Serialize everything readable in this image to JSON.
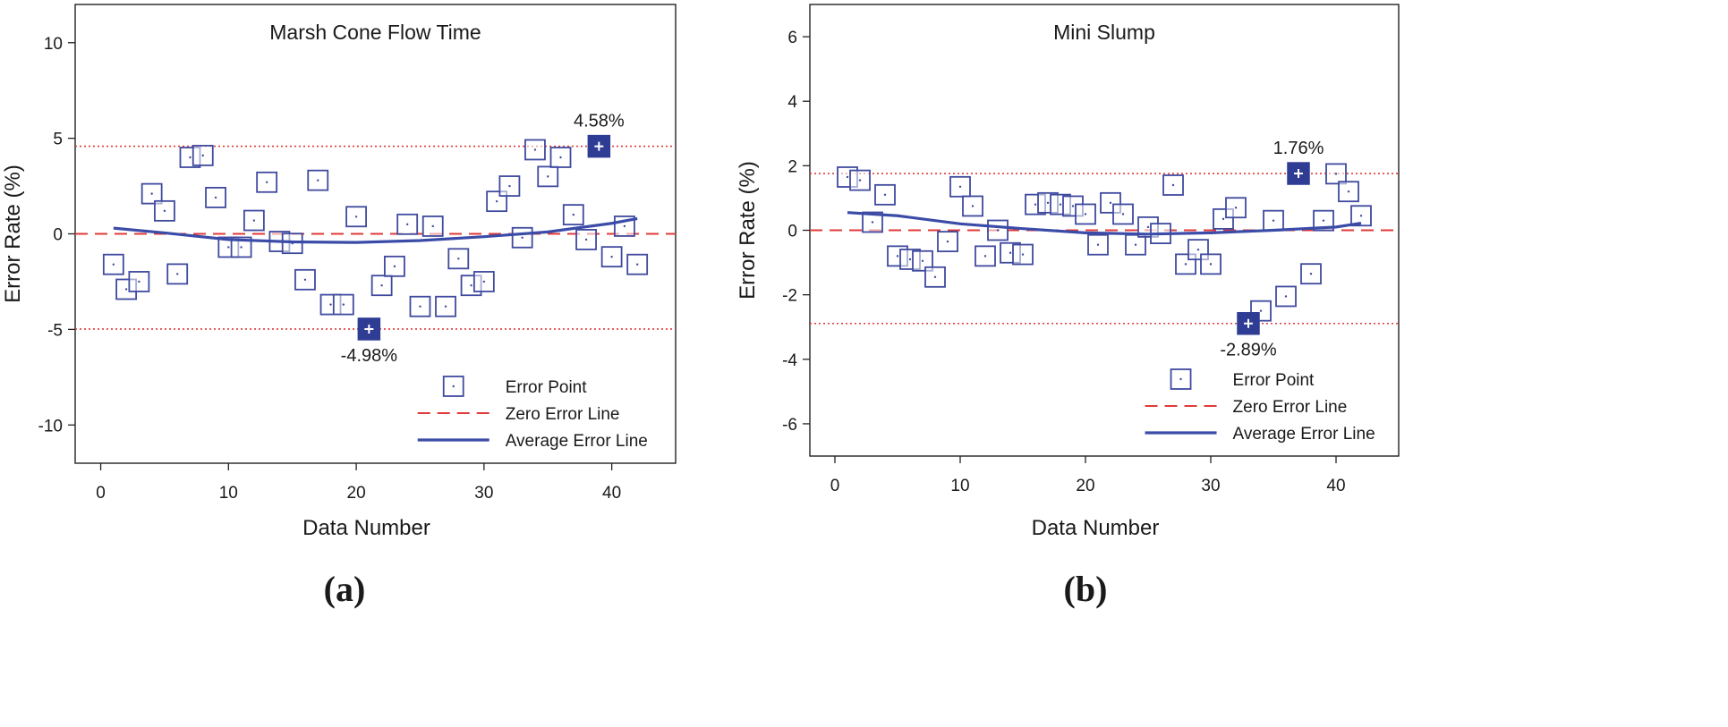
{
  "chart_data": [
    {
      "type": "scatter",
      "panel_label": "(a)",
      "title": "Marsh Cone Flow Time",
      "xlabel": "Data Number",
      "ylabel": "Error Rate (%)",
      "xlim": [
        -2,
        45
      ],
      "ylim": [
        -12,
        12
      ],
      "x_ticks": [
        0,
        10,
        20,
        30,
        40
      ],
      "y_ticks": [
        -10,
        -5,
        0,
        5,
        10
      ],
      "y_tick_labels": [
        "-10",
        "-5",
        "0",
        "5",
        "10"
      ],
      "error_points": {
        "x": [
          1,
          2,
          3,
          4,
          5,
          6,
          7,
          8,
          9,
          10,
          11,
          12,
          13,
          14,
          15,
          16,
          17,
          18,
          19,
          20,
          21,
          22,
          23,
          24,
          25,
          26,
          27,
          28,
          29,
          30,
          31,
          32,
          33,
          34,
          35,
          36,
          37,
          38,
          39,
          40,
          41,
          42
        ],
        "y": [
          -1.6,
          -2.9,
          -2.5,
          2.1,
          1.2,
          -2.1,
          4.0,
          4.1,
          1.9,
          -0.7,
          -0.7,
          0.7,
          2.7,
          -0.4,
          -0.5,
          -2.4,
          2.8,
          -3.7,
          -3.7,
          0.9,
          -4.98,
          -2.7,
          -1.7,
          0.5,
          -3.8,
          0.4,
          -3.8,
          -1.3,
          -2.7,
          -2.5,
          1.7,
          2.5,
          -0.2,
          4.4,
          3.0,
          4.0,
          1.0,
          -0.3,
          4.58,
          -1.2,
          0.4,
          -1.6
        ]
      },
      "max_point": {
        "x": 39,
        "y": 4.58,
        "label": "4.58%"
      },
      "min_point": {
        "x": 21,
        "y": -4.98,
        "label": "-4.98%"
      },
      "bound_lines": [
        4.58,
        -4.98
      ],
      "average_line": {
        "x": [
          1,
          5,
          10,
          15,
          20,
          25,
          30,
          35,
          40,
          42
        ],
        "y": [
          0.3,
          0.05,
          -0.3,
          -0.42,
          -0.45,
          -0.35,
          -0.15,
          0.1,
          0.55,
          0.8
        ]
      },
      "legend": {
        "position": "bottom-right",
        "entries": [
          "Error Point",
          "Zero Error Line",
          "Average Error Line"
        ]
      }
    },
    {
      "type": "scatter",
      "panel_label": "(b)",
      "title": "Mini Slump",
      "xlabel": "Data Number",
      "ylabel": "Error Rate (%)",
      "xlim": [
        -2,
        45
      ],
      "ylim": [
        -7,
        7
      ],
      "x_ticks": [
        0,
        10,
        20,
        30,
        40
      ],
      "y_ticks": [
        -6,
        -4,
        -2,
        0,
        2,
        4,
        6
      ],
      "y_tick_labels": [
        "-6",
        "-4",
        "-2",
        "0",
        "2",
        "4",
        "6"
      ],
      "error_points": {
        "x": [
          1,
          2,
          3,
          4,
          5,
          6,
          7,
          8,
          9,
          10,
          11,
          12,
          13,
          14,
          15,
          16,
          17,
          18,
          19,
          20,
          21,
          22,
          23,
          24,
          25,
          26,
          27,
          28,
          29,
          30,
          31,
          32,
          33,
          34,
          35,
          36,
          37,
          38,
          39,
          40,
          41,
          42
        ],
        "y": [
          1.65,
          1.55,
          0.25,
          1.1,
          -0.8,
          -0.9,
          -0.95,
          -1.45,
          -0.35,
          1.35,
          0.75,
          -0.8,
          0.0,
          -0.7,
          -0.75,
          0.8,
          0.85,
          0.8,
          0.75,
          0.5,
          -0.45,
          0.85,
          0.5,
          -0.45,
          0.1,
          -0.1,
          1.4,
          -1.05,
          -0.6,
          -1.05,
          0.35,
          0.7,
          -2.89,
          -2.5,
          0.3,
          -2.05,
          1.76,
          -1.35,
          0.3,
          1.75,
          1.2,
          0.45
        ]
      },
      "max_point": {
        "x": 37,
        "y": 1.76,
        "label": "1.76%"
      },
      "min_point": {
        "x": 33,
        "y": -2.89,
        "label": "-2.89%"
      },
      "bound_lines": [
        1.76,
        -2.89
      ],
      "average_line": {
        "x": [
          1,
          5,
          10,
          15,
          20,
          25,
          30,
          35,
          40,
          42
        ],
        "y": [
          0.55,
          0.45,
          0.2,
          0.05,
          -0.08,
          -0.12,
          -0.08,
          0.0,
          0.1,
          0.22
        ]
      },
      "legend": {
        "position": "bottom-right",
        "entries": [
          "Error Point",
          "Zero Error Line",
          "Average Error Line"
        ]
      }
    }
  ],
  "colors": {
    "marker": "#3f4a9e",
    "highlight": "#2f3c94",
    "zero_line": "#e03a3a",
    "bound_line": "#e03a3a",
    "average_line": "#3b4ca8",
    "axis": "#222222"
  }
}
